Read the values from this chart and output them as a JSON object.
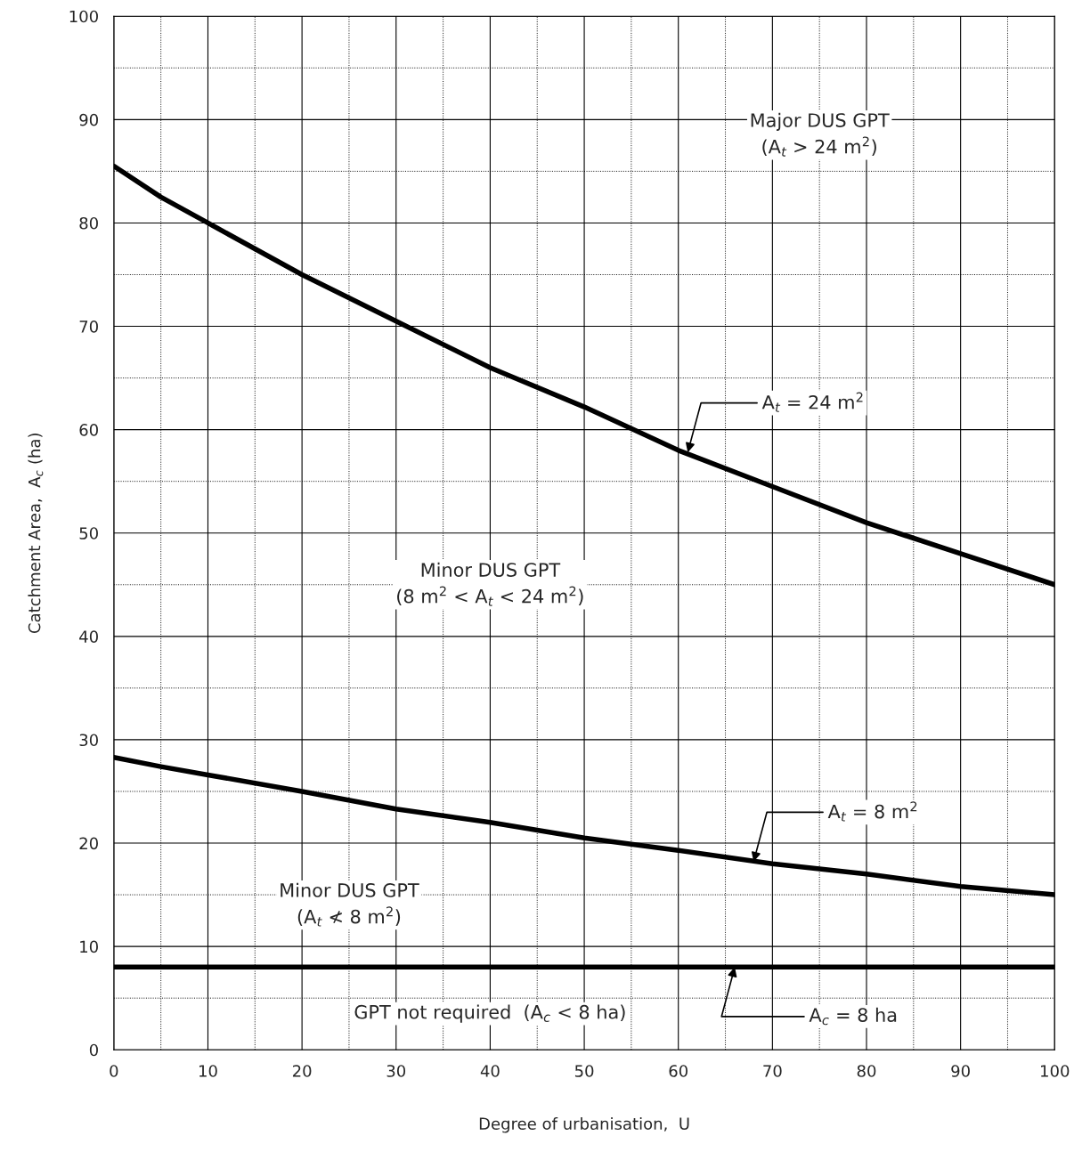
{
  "chart_data": {
    "type": "line",
    "xlabel": "Degree of urbanisation,  U",
    "ylabel": "Catchment Area,  A$_{c}$ (ha)",
    "xlim": [
      0,
      100
    ],
    "ylim": [
      0,
      100
    ],
    "xticks": [
      0,
      {
        "value": 5,
        "label": null
      },
      10,
      {
        "value": 15,
        "label": null
      },
      20,
      {
        "value": 25,
        "label": null
      },
      30,
      {
        "value": 35,
        "label": null
      },
      40,
      {
        "value": 45,
        "label": null
      },
      50,
      {
        "value": 55,
        "label": null
      },
      60,
      {
        "value": 65,
        "label": null
      },
      70,
      {
        "value": 75,
        "label": null
      },
      80,
      {
        "value": 85,
        "label": null
      },
      90,
      {
        "value": 95,
        "label": null
      },
      100
    ],
    "yticks": [
      0,
      {
        "value": 5,
        "label": null
      },
      10,
      {
        "value": 15,
        "label": null
      },
      20,
      {
        "value": 25,
        "label": null
      },
      30,
      {
        "value": 35,
        "label": null
      },
      40,
      {
        "value": 45,
        "label": null
      },
      50,
      {
        "value": 55,
        "label": null
      },
      60,
      {
        "value": 65,
        "label": null
      },
      70,
      {
        "value": 75,
        "label": null
      },
      80,
      {
        "value": 85,
        "label": null
      },
      90,
      {
        "value": 95,
        "label": null
      },
      100
    ],
    "grid": true,
    "marker": "none",
    "line_style": "solid",
    "x": [
      0,
      5,
      10,
      20,
      30,
      40,
      50,
      60,
      70,
      80,
      90,
      100
    ],
    "series": [
      {
        "color": "#000000",
        "values": [
          85.5,
          82.5,
          80,
          75,
          70.5,
          66,
          62.2,
          58,
          54.5,
          51,
          48,
          45
        ]
      },
      {
        "color": "#000000",
        "values": [
          28.3,
          27.4,
          26.6,
          25,
          23.3,
          22,
          20.5,
          19.3,
          18,
          17,
          15.8,
          15
        ]
      },
      {
        "color": "#000000",
        "values": [
          8,
          8,
          8,
          8,
          8,
          8,
          8,
          8,
          8,
          8,
          8,
          8
        ]
      }
    ],
    "annotations": [
      "Major DUS GPT\n(A$_{t}$ > 24 m$^{2}$)",
      {
        "text": "A$_{t}$ = 24 m$^{2}$",
        "x": 61,
        "y": 57.8
      },
      "Minor DUS GPT\n(8 m$^{2}$ < A$_{t}$ < 24 m$^{2}$)",
      {
        "text": "A$_{t}$ = 8 m$^{2}$",
        "x": 68,
        "y": 18.2
      },
      "Minor DUS GPT\n(A$_{t}$ ≮ 8 m$^{2}$)",
      "GPT not required  (A$_{c}$ < 8 ha)",
      {
        "text": "A$_{c}$ = 8 ha",
        "x": 66,
        "y": 8
      }
    ]
  }
}
